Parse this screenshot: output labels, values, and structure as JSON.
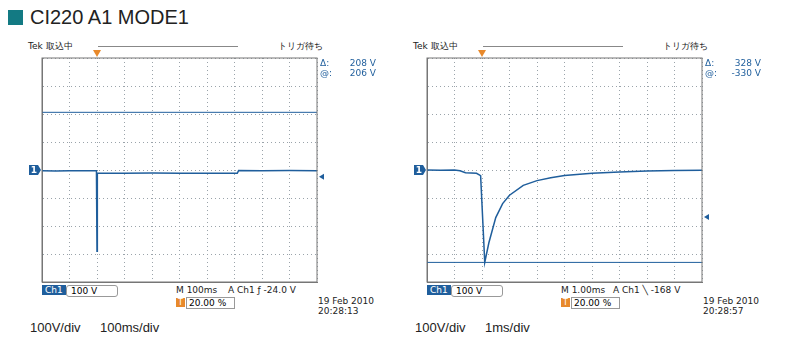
{
  "title": "CI220 A1 MODE1",
  "chart_data": [
    {
      "type": "line",
      "header": "Tek 取込中",
      "status": "トリガ待ち",
      "readouts": [
        {
          "label": "Δ:",
          "value": "208 V"
        },
        {
          "label": "@:",
          "value": "206 V"
        }
      ],
      "cursor": 206,
      "channel": "Ch1",
      "volts_per_div": "100 V",
      "timebase": "M 100ms",
      "trigger_label": "A  Ch1  ƒ  -24.0 V",
      "trigger_position_marker": "T",
      "trigger_position_label": "20.00 %",
      "date": "19 Feb 2010",
      "time": "20:28:13",
      "scale_labels": [
        "100V/div",
        "100ms/div"
      ],
      "ground_marker": "1",
      "trigger_level": -24.0,
      "trigger_time": 0,
      "color": "#1f5e9c",
      "xlim": [
        -200,
        800
      ],
      "xticks": [
        -200,
        -100,
        0,
        100,
        200,
        300,
        400,
        500,
        600,
        700,
        800
      ],
      "ylim": [
        -400,
        400
      ],
      "yticks": [
        -400,
        -300,
        -200,
        -100,
        0,
        100,
        200,
        300,
        400
      ],
      "grid": true,
      "tick_labels": false,
      "x": [
        -200,
        -150,
        -100,
        -50,
        -2,
        0,
        0.5,
        2,
        100,
        200,
        300,
        400,
        510,
        515,
        600,
        700,
        800
      ],
      "values": [
        -3,
        -4,
        -3,
        -3,
        -3,
        -290,
        -40,
        -12,
        -12,
        -11,
        -12,
        -12,
        -12,
        -2,
        -3,
        -2,
        -3
      ]
    },
    {
      "type": "line",
      "header": "Tek 取込中",
      "status": "トリガ待ち",
      "readouts": [
        {
          "label": "Δ:",
          "value": "328 V"
        },
        {
          "label": "@:",
          "value": "-330 V"
        }
      ],
      "cursor": -330,
      "channel": "Ch1",
      "volts_per_div": "100 V",
      "timebase": "M 1.00ms",
      "trigger_label": "A  Ch1  ╲  -168 V",
      "trigger_position_marker": "T",
      "trigger_position_label": "20.00 %",
      "date": "19 Feb 2010",
      "time": "20:28:57",
      "scale_labels": [
        "100V/div",
        "1ms/div"
      ],
      "ground_marker": "1",
      "trigger_level": -168,
      "trigger_time": 0,
      "color": "#1f5e9c",
      "xlim": [
        -2,
        8
      ],
      "xticks": [
        -2,
        -1,
        0,
        1,
        2,
        3,
        4,
        5,
        6,
        7,
        8
      ],
      "ylim": [
        -400,
        400
      ],
      "yticks": [
        -400,
        -300,
        -200,
        -100,
        0,
        100,
        200,
        300,
        400
      ],
      "grid": true,
      "tick_labels": false,
      "x": [
        -2,
        -1.5,
        -1,
        -0.8,
        -0.6,
        -0.2,
        -0.05,
        0.1,
        0.25,
        0.5,
        0.75,
        1,
        1.5,
        2,
        2.5,
        3,
        4,
        5,
        6,
        7,
        8
      ],
      "values": [
        0,
        -1,
        0,
        -3,
        -10,
        -12,
        -20,
        -330,
        -260,
        -170,
        -120,
        -90,
        -55,
        -38,
        -28,
        -20,
        -12,
        -7,
        -4,
        -2,
        -1
      ]
    }
  ]
}
